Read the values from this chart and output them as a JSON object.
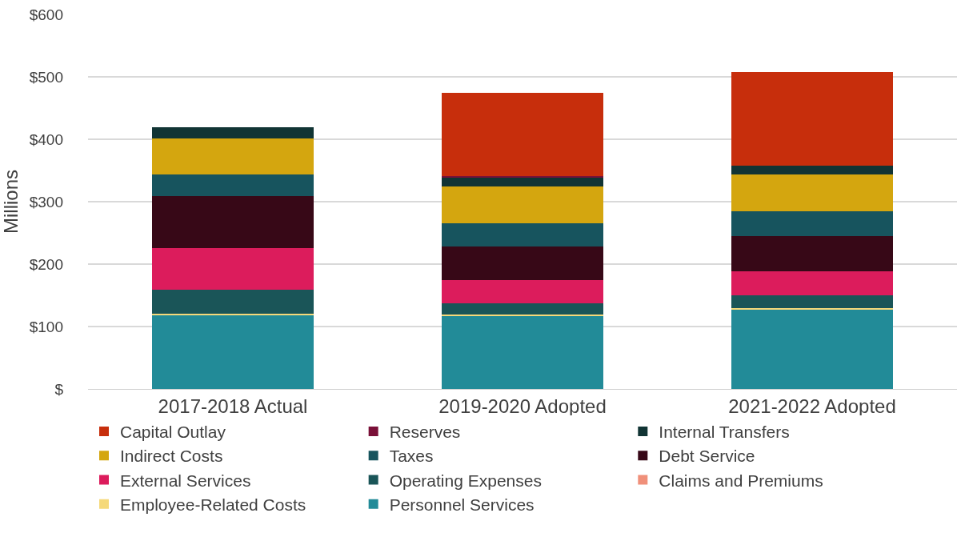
{
  "chart_data": {
    "type": "bar",
    "stacked": true,
    "ylabel": "Millions",
    "categories": [
      "2017-2018 Actual",
      "2019-2020 Adopted",
      "2021-2022 Adopted"
    ],
    "series": [
      {
        "name": "Personnel Services",
        "color": "#228b98",
        "values": [
          118,
          117,
          128
        ]
      },
      {
        "name": "Employee-Related Costs",
        "color": "#f5d97a",
        "values": [
          2,
          2,
          2
        ]
      },
      {
        "name": "Claims and Premiums",
        "color": "#f0907a",
        "values": [
          0,
          0,
          0
        ]
      },
      {
        "name": "Operating Expenses",
        "color": "#1a5558",
        "values": [
          39,
          18,
          20
        ]
      },
      {
        "name": "External Services",
        "color": "#dc1c5c",
        "values": [
          67,
          38,
          38
        ]
      },
      {
        "name": "Debt Service",
        "color": "#370817",
        "values": [
          83,
          53,
          57
        ]
      },
      {
        "name": "Taxes",
        "color": "#17545e",
        "values": [
          34,
          37,
          39
        ]
      },
      {
        "name": "Indirect Costs",
        "color": "#d4a60f",
        "values": [
          58,
          59,
          60
        ]
      },
      {
        "name": "Internal Transfers",
        "color": "#113434",
        "values": [
          18,
          14,
          14
        ]
      },
      {
        "name": "Reserves",
        "color": "#7a1038",
        "values": [
          0,
          3,
          0
        ]
      },
      {
        "name": "Capital Outlay",
        "color": "#c72e0c",
        "values": [
          0,
          133,
          150
        ]
      }
    ],
    "ylim": [
      0,
      600
    ],
    "yticks": [
      {
        "value": 0,
        "label": "$"
      },
      {
        "value": 100,
        "label": "$100"
      },
      {
        "value": 200,
        "label": "$200"
      },
      {
        "value": 300,
        "label": "$300"
      },
      {
        "value": 400,
        "label": "$400"
      },
      {
        "value": 500,
        "label": "$500"
      },
      {
        "value": 600,
        "label": "$600"
      }
    ],
    "grid": "y",
    "legend": "bottom"
  }
}
